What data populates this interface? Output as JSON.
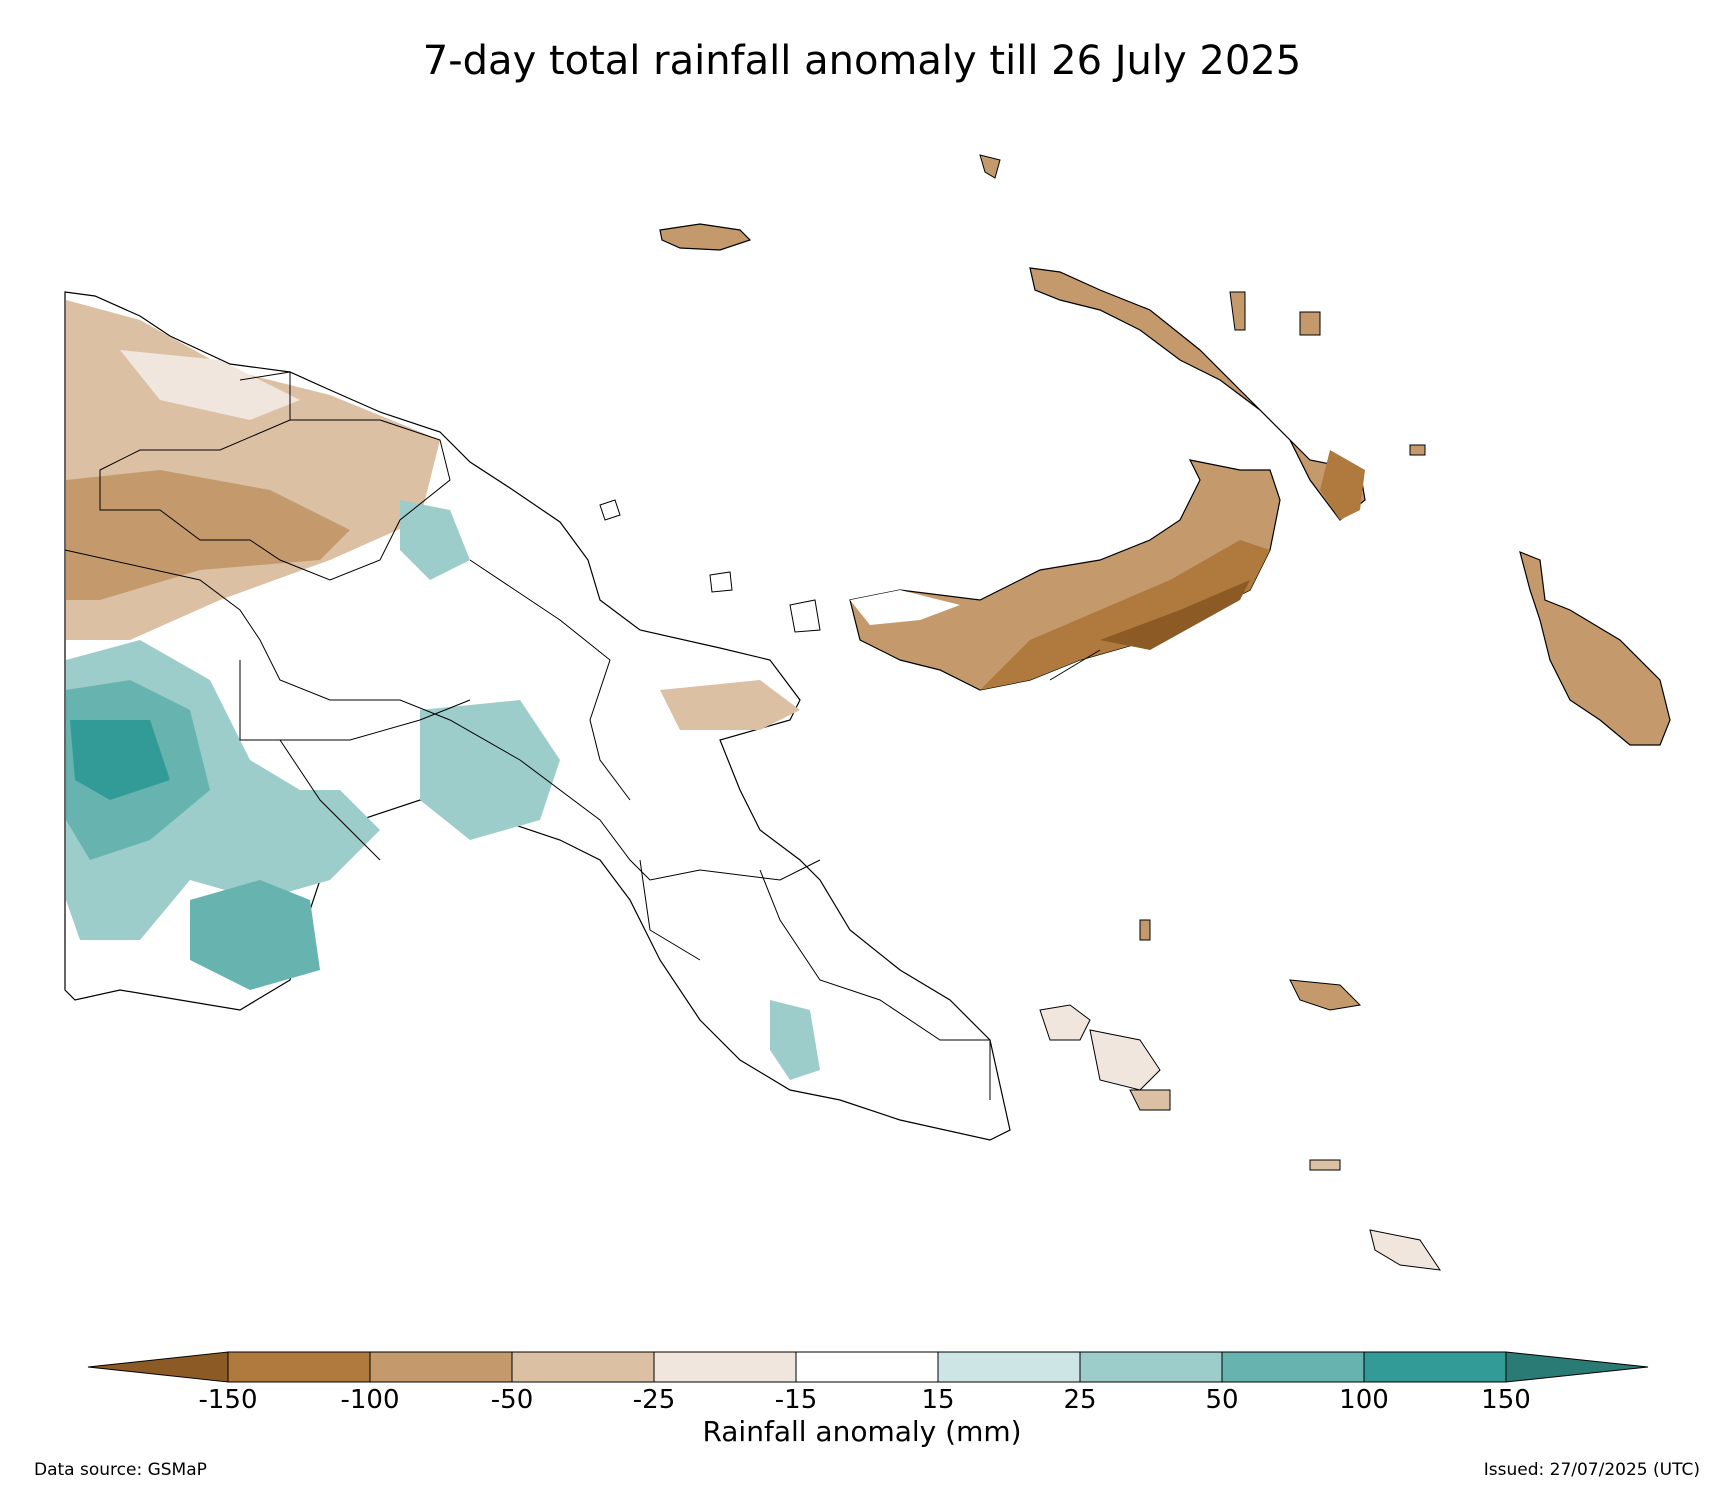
{
  "title": "7-day total rainfall anomaly till 26 July 2025",
  "colorbar": {
    "label": "Rainfall anomaly (mm)",
    "ticks": [
      "-150",
      "-100",
      "-50",
      "-25",
      "-15",
      "15",
      "25",
      "50",
      "100",
      "150"
    ],
    "colors": {
      "lt_m150": "#8c5a25",
      "m150_m100": "#b07a3e",
      "m100_m50": "#c49a6d",
      "m50_m25": "#dcc0a4",
      "m25_m15": "#f1e6de",
      "m15_15": "#ffffff",
      "p15_25": "#cde6e5",
      "p25_50": "#9ccdcb",
      "p50_100": "#66b3b0",
      "p100_150": "#339b97",
      "gt_150": "#2a7a76"
    }
  },
  "source": "Data source: GSMaP",
  "issued": "Issued: 27/07/2025 (UTC)"
}
